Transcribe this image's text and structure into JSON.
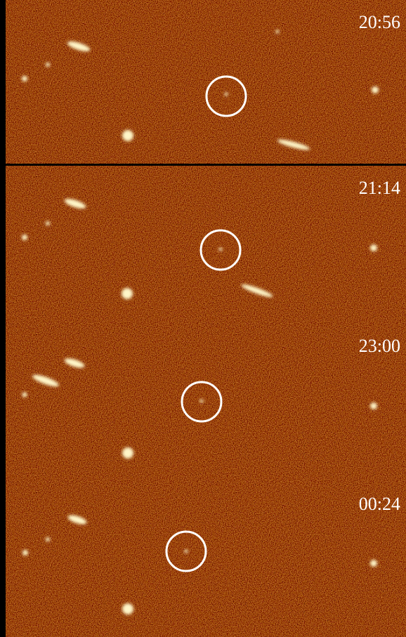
{
  "panels": [
    {
      "time": "20:56"
    },
    {
      "time": "21:14"
    },
    {
      "time": "23:00"
    },
    {
      "time": "00:24"
    }
  ]
}
